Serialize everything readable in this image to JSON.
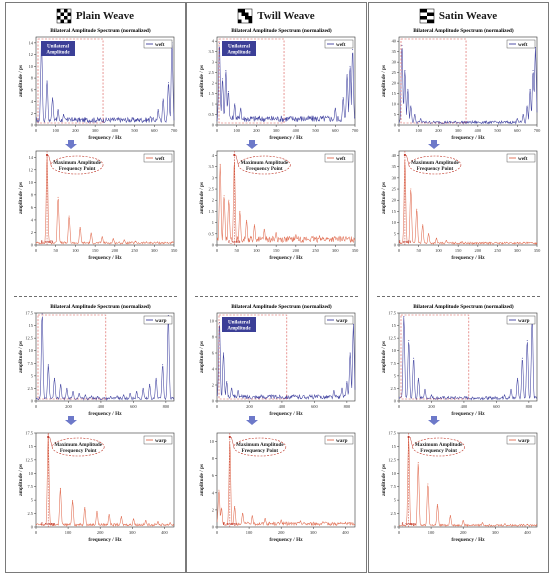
{
  "colors": {
    "blue": "#3d3f9e",
    "red": "#e06a4e",
    "red_dark": "#c0392b",
    "callout_fill": "#3b3f97",
    "arrow": "#6d79c9",
    "dashed_box": "#d9534f"
  },
  "columns": [
    {
      "title": "Plain Weave",
      "icon": "plain-weave-icon",
      "pattern": "plain",
      "charts": [
        {
          "kind": "bilateral",
          "direction": "weft",
          "title": "Bilateral Amplitude Spectrum (normalized)",
          "callout": [
            "Unilateral",
            "Amplitude"
          ],
          "legend": "weft",
          "ylabel": "amplitude / ps",
          "xlabel": "frequency / Hz",
          "xmax": 700,
          "xticks": [
            0,
            100,
            200,
            300,
            400,
            500,
            600,
            700
          ],
          "ymax": 15,
          "yticks": [
            0,
            2,
            4,
            6,
            8,
            10,
            12,
            14
          ],
          "peaks": [
            [
              28,
              14.2
            ],
            [
              56,
              7.5
            ],
            [
              84,
              4.6
            ],
            [
              112,
              2.6
            ],
            [
              140,
              1.8
            ],
            [
              168,
              1.2
            ],
            [
              196,
              0.9
            ],
            [
              530,
              1.0
            ],
            [
              580,
              1.4
            ],
            [
              620,
              2.6
            ],
            [
              645,
              4.4
            ],
            [
              672,
              7.2
            ],
            [
              690,
              14.0
            ]
          ],
          "base": 1.0,
          "box_end": 340
        },
        {
          "kind": "unilateral",
          "direction": "weft",
          "legend": "weft",
          "ylabel": "amplitude / ps",
          "xlabel": "frequency / Hz",
          "xmax": 350,
          "xticks": [
            0,
            50,
            100,
            150,
            200,
            250,
            300,
            350
          ],
          "ymax": 15,
          "yticks": [
            0,
            2,
            4,
            6,
            8,
            10,
            12,
            14
          ],
          "peak_label": "f_weft",
          "callout": [
            "Maximum Amplitude",
            "Frequency Point"
          ],
          "peaks": [
            [
              28,
              14.2
            ],
            [
              56,
              7.6
            ],
            [
              84,
              4.6
            ],
            [
              112,
              2.8
            ],
            [
              140,
              1.9
            ],
            [
              168,
              1.3
            ],
            [
              196,
              1.0
            ],
            [
              224,
              0.8
            ],
            [
              252,
              0.6
            ],
            [
              280,
              0.5
            ],
            [
              308,
              0.45
            ]
          ],
          "base": 0.4
        }
      ],
      "charts_bottom": [
        {
          "kind": "bilateral",
          "direction": "warp",
          "title": "Bilateral Amplitude Spectrum (normalized)",
          "callout": null,
          "legend": "warp",
          "ylabel": "amplitude / ps",
          "xlabel": "frequency / Hz",
          "xmax": 850,
          "xticks": [
            0,
            200,
            400,
            600,
            800
          ],
          "ymax": 17.5,
          "yticks": [
            0,
            2.5,
            5,
            7.5,
            10,
            12.5,
            15,
            17.5
          ],
          "peaks": [
            [
              38,
              17.3
            ],
            [
              76,
              7.2
            ],
            [
              114,
              4.5
            ],
            [
              152,
              3.3
            ],
            [
              190,
              2.5
            ],
            [
              228,
              1.9
            ],
            [
              266,
              1.5
            ],
            [
              304,
              1.2
            ],
            [
              342,
              1.0
            ],
            [
              380,
              0.9
            ],
            [
              460,
              0.9
            ],
            [
              500,
              1.0
            ],
            [
              540,
              1.2
            ],
            [
              580,
              1.5
            ],
            [
              620,
              1.9
            ],
            [
              660,
              2.5
            ],
            [
              700,
              3.3
            ],
            [
              740,
              4.5
            ],
            [
              780,
              7.2
            ],
            [
              815,
              17.0
            ]
          ],
          "base": 0.6,
          "box_end": 430
        },
        {
          "kind": "unilateral",
          "direction": "warp",
          "legend": "warp",
          "ylabel": "amplitude / ps",
          "xlabel": "frequency / Hz",
          "xmax": 430,
          "xticks": [
            0,
            100,
            200,
            300,
            400
          ],
          "ymax": 17.5,
          "yticks": [
            0,
            2.5,
            5,
            7.5,
            10,
            12.5,
            15,
            17.5
          ],
          "peak_label": "f_warp",
          "callout": [
            "Maximum Amplitude",
            "Frequency Point"
          ],
          "peaks": [
            [
              38,
              17.3
            ],
            [
              76,
              7.2
            ],
            [
              114,
              4.9
            ],
            [
              152,
              3.6
            ],
            [
              190,
              2.9
            ],
            [
              228,
              2.3
            ],
            [
              266,
              1.9
            ],
            [
              304,
              1.5
            ],
            [
              342,
              1.2
            ],
            [
              380,
              1.0
            ],
            [
              418,
              0.8
            ]
          ],
          "base": 0.5
        }
      ]
    },
    {
      "title": "Twill Weave",
      "icon": "twill-weave-icon",
      "pattern": "twill",
      "charts": [
        {
          "kind": "bilateral",
          "direction": "weft",
          "title": "Bilateral Amplitude Spectrum (normalized)",
          "callout": [
            "Unilateral",
            "Amplitude"
          ],
          "legend": "weft",
          "ylabel": "amplitude / ps",
          "xlabel": "frequency / Hz",
          "xmax": 700,
          "xticks": [
            0,
            100,
            200,
            300,
            400,
            500,
            600,
            700
          ],
          "ymax": 4.2,
          "yticks": [
            0,
            0.5,
            1,
            1.5,
            2,
            2.5,
            3,
            3.5,
            4
          ],
          "peaks": [
            [
              12,
              3.9
            ],
            [
              28,
              2.2
            ],
            [
              45,
              2.6
            ],
            [
              58,
              1.6
            ],
            [
              90,
              1.0
            ],
            [
              120,
              0.8
            ],
            [
              600,
              0.8
            ],
            [
              640,
              1.3
            ],
            [
              660,
              2.4
            ],
            [
              675,
              2.8
            ],
            [
              688,
              3.6
            ]
          ],
          "base": 0.35,
          "box_end": 340
        },
        {
          "kind": "unilateral",
          "direction": "weft",
          "legend": "weft",
          "ylabel": "amplitude / ps",
          "xlabel": "frequency / Hz",
          "xmax": 350,
          "xticks": [
            0,
            50,
            100,
            150,
            200,
            250,
            300,
            350
          ],
          "ymax": 4.2,
          "yticks": [
            0,
            0.5,
            1,
            1.5,
            2,
            2.5,
            3,
            3.5,
            4
          ],
          "peak_label": "f_weft",
          "callout": [
            "Maximum Amplitude",
            "Frequency Point"
          ],
          "peaks": [
            [
              8,
              3.6
            ],
            [
              18,
              2.2
            ],
            [
              30,
              2.0
            ],
            [
              44,
              3.8
            ],
            [
              58,
              1.5
            ],
            [
              75,
              1.1
            ],
            [
              95,
              0.9
            ],
            [
              120,
              0.7
            ],
            [
              150,
              0.55
            ],
            [
              200,
              0.45
            ],
            [
              260,
              0.4
            ],
            [
              320,
              0.35
            ]
          ],
          "base": 0.3
        }
      ],
      "charts_bottom": [
        {
          "kind": "bilateral",
          "direction": "warp",
          "title": "Bilateral Amplitude Spectrum (normalized)",
          "callout": [
            "Unilateral",
            "Amplitude"
          ],
          "legend": "warp",
          "ylabel": "amplitude / ps",
          "xlabel": "frequency / Hz",
          "xmax": 850,
          "xticks": [
            0,
            200,
            400,
            600,
            800
          ],
          "ymax": 11,
          "yticks": [
            0,
            2,
            4,
            6,
            8,
            10
          ],
          "peaks": [
            [
              15,
              9.8
            ],
            [
              40,
              6.0
            ],
            [
              60,
              2.4
            ],
            [
              90,
              1.6
            ],
            [
              130,
              1.3
            ],
            [
              720,
              1.3
            ],
            [
              770,
              1.6
            ],
            [
              800,
              2.4
            ],
            [
              820,
              6.0
            ],
            [
              840,
              9.6
            ]
          ],
          "base": 0.6,
          "box_end": 430
        },
        {
          "kind": "unilateral",
          "direction": "warp",
          "legend": "warp",
          "ylabel": "amplitude / ps",
          "xlabel": "frequency / Hz",
          "xmax": 430,
          "xticks": [
            0,
            100,
            200,
            300,
            400
          ],
          "ymax": 11,
          "yticks": [
            0,
            2,
            4,
            6,
            8,
            10
          ],
          "peak_label": "f_warp",
          "callout": [
            "Maximum Amplitude",
            "Frequency Point"
          ],
          "peaks": [
            [
              6,
              4.3
            ],
            [
              14,
              2.2
            ],
            [
              40,
              10.0
            ],
            [
              55,
              2.4
            ],
            [
              80,
              1.6
            ],
            [
              110,
              1.3
            ],
            [
              150,
              1.0
            ],
            [
              200,
              0.8
            ],
            [
              260,
              0.7
            ],
            [
              330,
              0.6
            ],
            [
              400,
              0.5
            ]
          ],
          "base": 0.45
        }
      ]
    },
    {
      "title": "Satin Weave",
      "icon": "satin-weave-icon",
      "pattern": "satin",
      "charts": [
        {
          "kind": "bilateral",
          "direction": "weft",
          "title": "Bilateral Amplitude Spectrum (normalized)",
          "callout": null,
          "legend": "weft",
          "ylabel": "amplitude / ps",
          "xlabel": "frequency / Hz",
          "xmax": 700,
          "xticks": [
            0,
            100,
            200,
            300,
            400,
            500,
            600,
            700
          ],
          "ymax": 42,
          "yticks": [
            0,
            5,
            10,
            15,
            20,
            25,
            30,
            35,
            40
          ],
          "peaks": [
            [
              15,
              38
            ],
            [
              30,
              26
            ],
            [
              45,
              17
            ],
            [
              60,
              9
            ],
            [
              80,
              5
            ],
            [
              110,
              3
            ],
            [
              600,
              3
            ],
            [
              630,
              5
            ],
            [
              650,
              9
            ],
            [
              665,
              17
            ],
            [
              680,
              26
            ],
            [
              692,
              37
            ]
          ],
          "base": 1.5,
          "box_end": 340
        },
        {
          "kind": "unilateral",
          "direction": "weft",
          "legend": "weft",
          "ylabel": "amplitude / ps",
          "xlabel": "frequency / Hz",
          "xmax": 350,
          "xticks": [
            0,
            50,
            100,
            150,
            200,
            250,
            300,
            350
          ],
          "ymax": 42,
          "yticks": [
            0,
            5,
            10,
            15,
            20,
            25,
            30,
            35,
            40
          ],
          "peak_label": "f_weft",
          "callout": [
            "Maximum Amplitude",
            "Frequency Point"
          ],
          "peaks": [
            [
              15,
              38
            ],
            [
              30,
              25
            ],
            [
              45,
              16
            ],
            [
              60,
              9
            ],
            [
              75,
              5
            ],
            [
              95,
              3
            ],
            [
              120,
              2
            ],
            [
              160,
              1.5
            ],
            [
              220,
              1.2
            ],
            [
              300,
              1.0
            ]
          ],
          "base": 1.0
        }
      ],
      "charts_bottom": [
        {
          "kind": "bilateral",
          "direction": "warp",
          "title": "Bilateral Amplitude Spectrum (normalized)",
          "callout": null,
          "legend": "warp",
          "ylabel": "amplitude / ps",
          "xlabel": "frequency / Hz",
          "xmax": 850,
          "xticks": [
            0,
            200,
            400,
            600,
            800
          ],
          "ymax": 17.5,
          "yticks": [
            0,
            2.5,
            5,
            7.5,
            10,
            12.5,
            15,
            17.5
          ],
          "peaks": [
            [
              30,
              16.8
            ],
            [
              60,
              12.0
            ],
            [
              90,
              8.5
            ],
            [
              120,
              4.5
            ],
            [
              160,
              2.3
            ],
            [
              200,
              1.2
            ],
            [
              650,
              1.2
            ],
            [
              690,
              2.3
            ],
            [
              730,
              4.5
            ],
            [
              760,
              8.5
            ],
            [
              790,
              12.0
            ],
            [
              820,
              16.5
            ]
          ],
          "base": 0.7,
          "box_end": 430
        },
        {
          "kind": "unilateral",
          "direction": "warp",
          "legend": "warp",
          "ylabel": "amplitude / ps",
          "xlabel": "frequency / Hz",
          "xmax": 430,
          "xticks": [
            0,
            100,
            200,
            300,
            400
          ],
          "ymax": 17.5,
          "yticks": [
            0,
            2.5,
            5,
            7.5,
            10,
            12.5,
            15,
            17.5
          ],
          "peak_label": "f_warp",
          "callout": [
            "Maximum Amplitude",
            "Frequency Point"
          ],
          "peaks": [
            [
              30,
              16.8
            ],
            [
              60,
              12.0
            ],
            [
              90,
              8.0
            ],
            [
              120,
              4.2
            ],
            [
              160,
              2.1
            ],
            [
              200,
              1.2
            ],
            [
              260,
              0.8
            ],
            [
              330,
              0.6
            ],
            [
              400,
              0.5
            ]
          ],
          "base": 0.4
        }
      ]
    }
  ]
}
